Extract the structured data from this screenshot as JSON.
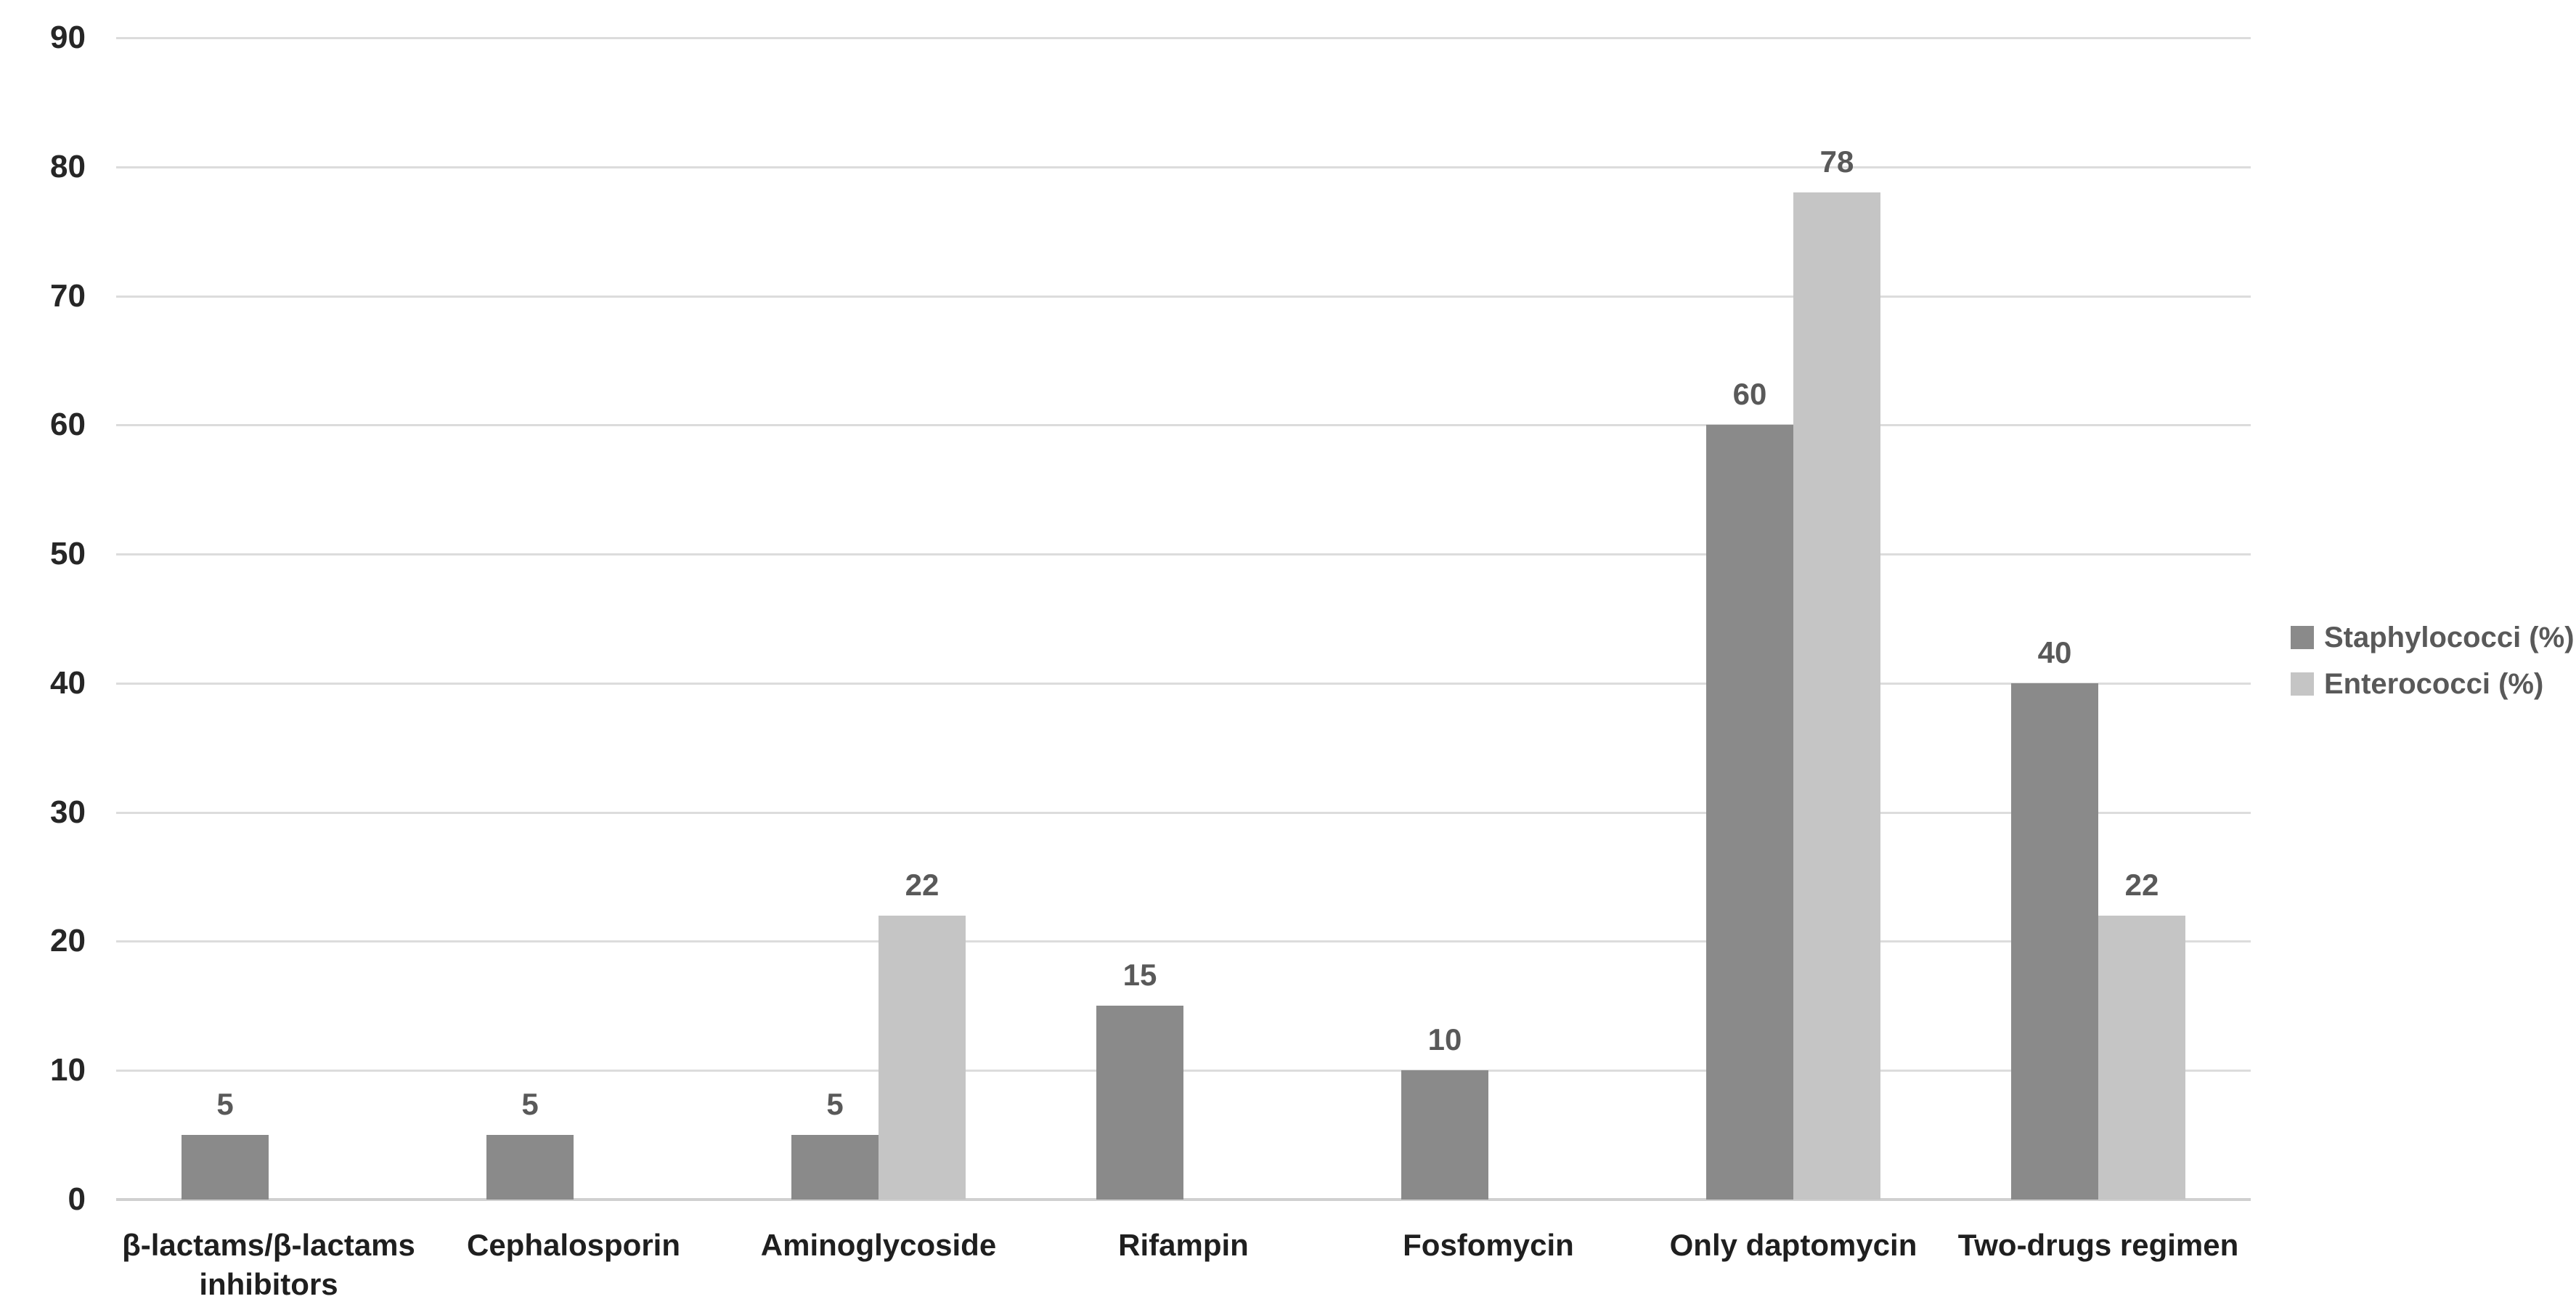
{
  "chart_data": {
    "type": "bar",
    "title": "",
    "categories": [
      "β-lactams/β-lactams\ninhibitors",
      "Cephalosporin",
      "Aminoglycoside",
      "Rifampin",
      "Fosfomycin",
      "Only daptomycin",
      "Two-drugs regimen"
    ],
    "series": [
      {
        "name": "Staphylococci (%)",
        "color": "#8a8a8a",
        "values": [
          5,
          5,
          5,
          15,
          10,
          60,
          40
        ]
      },
      {
        "name": "Enterococci (%)",
        "color": "#c5c5c5",
        "values": [
          0,
          0,
          22,
          0,
          0,
          78,
          22
        ]
      }
    ],
    "yticks": [
      0,
      10,
      20,
      30,
      40,
      50,
      60,
      70,
      80,
      90
    ],
    "ylim": [
      0,
      90
    ],
    "ytick_step": 10,
    "grid": true,
    "data_labels": true,
    "legend_position": "right",
    "colors": {
      "background": "#ffffff",
      "gridline": "#dcdcdc",
      "axis_line": "#d0d0d0",
      "tick_label": "#262626",
      "category_label": "#1f1f1f",
      "value_label": "#595959",
      "legend_text": "#595959"
    }
  }
}
